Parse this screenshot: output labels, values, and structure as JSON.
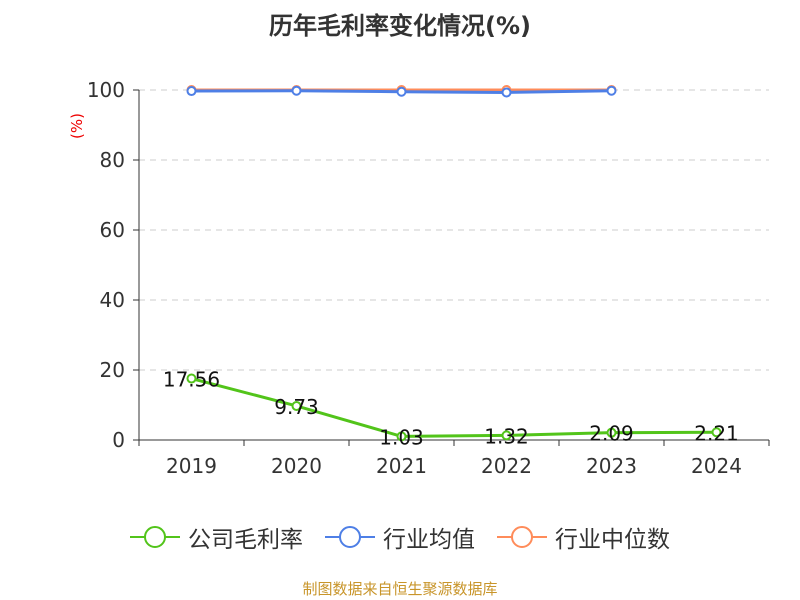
{
  "chart_data": {
    "type": "line",
    "title": "历年毛利率变化情况(%)",
    "ylabel": "(%)",
    "xlabel": "",
    "categories": [
      "2019",
      "2020",
      "2021",
      "2022",
      "2023",
      "2024"
    ],
    "ylim": [
      0,
      100
    ],
    "yticks": [
      "0",
      "20",
      "40",
      "60",
      "80",
      "100"
    ],
    "grid": true,
    "legend_position": "bottom",
    "series": [
      {
        "name": "公司毛利率",
        "color": "#52c41a",
        "values": [
          17.56,
          9.73,
          1.03,
          1.32,
          2.09,
          2.21
        ],
        "labels": [
          "17.56",
          "9.73",
          "1.03",
          "1.32",
          "2.09",
          "2.21"
        ]
      },
      {
        "name": "行业均值",
        "color": "#4e7fe6",
        "values": [
          99.7,
          99.8,
          99.5,
          99.3,
          99.8,
          null
        ]
      },
      {
        "name": "行业中位数",
        "color": "#ff8c5a",
        "values": [
          100,
          100,
          100,
          100,
          100,
          null
        ]
      }
    ]
  },
  "source": "制图数据来自恒生聚源数据库"
}
